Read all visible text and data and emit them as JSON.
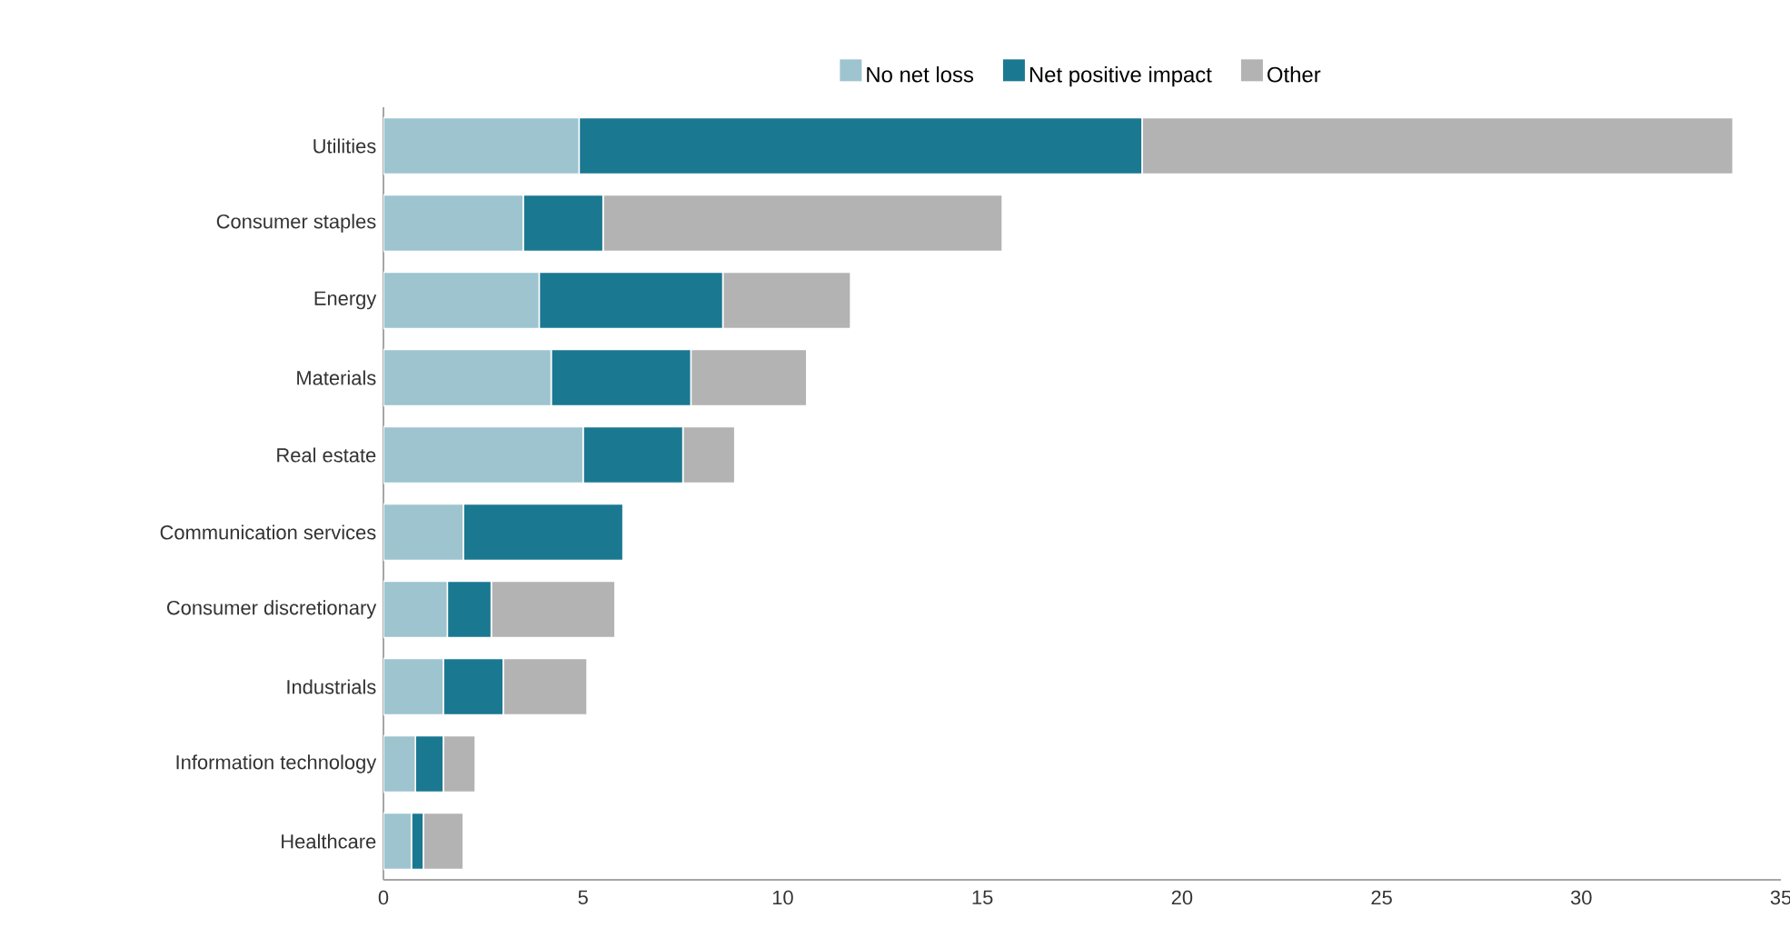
{
  "chart_data": {
    "type": "bar",
    "orientation": "horizontal",
    "stacked": true,
    "categories": [
      "Utilities",
      "Consumer staples",
      "Energy",
      "Materials",
      "Real estate",
      "Communication services",
      "Consumer discretionary",
      "Industrials",
      "Information technology",
      "Healthcare"
    ],
    "series": [
      {
        "name": "No net loss",
        "color": "#9dc4cf",
        "values": [
          4.9,
          3.5,
          3.9,
          4.2,
          5.0,
          2.0,
          1.6,
          1.5,
          0.8,
          0.7
        ]
      },
      {
        "name": "Net positive impact",
        "color": "#1b7891",
        "values": [
          14.1,
          2.0,
          4.6,
          3.5,
          2.5,
          4.0,
          1.1,
          1.5,
          0.7,
          0.3
        ]
      },
      {
        "name": "Other",
        "color": "#b3b3b3",
        "values": [
          14.8,
          10.0,
          3.2,
          2.9,
          1.3,
          0,
          3.1,
          2.1,
          0.8,
          1.0
        ]
      }
    ],
    "xlim": [
      0,
      35
    ],
    "xticks": [
      0,
      5,
      10,
      15,
      20,
      25,
      30,
      35
    ],
    "grid": false,
    "legend": "top"
  }
}
